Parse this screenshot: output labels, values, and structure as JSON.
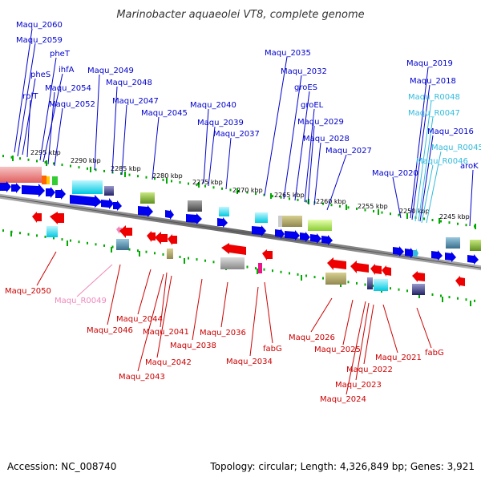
{
  "title": "Marinobacter aquaeolei VT8, complete genome",
  "footer": {
    "accession": "Accession: NC_008740",
    "summary": "Topology: circular; Length: 4,326,849 bp; Genes: 3,921"
  },
  "colors": {
    "fwd_label": "#0000cc",
    "rev_label": "#cc0000",
    "rna_fwd_label": "#33bbdd",
    "rna_rev_label": "#ee88bb",
    "fwd_gene": "#0000ee",
    "rev_gene": "#ee0000",
    "backbone": "#777777",
    "tick": "#00aa00"
  },
  "scale_labels": [
    "2295 kbp",
    "2290 kbp",
    "2285 kbp",
    "2280 kbp",
    "2275 kbp",
    "2270 kbp",
    "2265 kbp",
    "2260 kbp",
    "2255 kbp",
    "2250 kbp",
    "2245 kbp"
  ],
  "forward_labels": [
    {
      "text": "Maqu_2060"
    },
    {
      "text": "Maqu_2059"
    },
    {
      "text": "pheT"
    },
    {
      "text": "pheS"
    },
    {
      "text": "ihfA"
    },
    {
      "text": "Maqu_2054"
    },
    {
      "text": "rplT"
    },
    {
      "text": "Maqu_2052"
    },
    {
      "text": "Maqu_2049"
    },
    {
      "text": "Maqu_2048"
    },
    {
      "text": "Maqu_2047"
    },
    {
      "text": "Maqu_2045"
    },
    {
      "text": "Maqu_2040"
    },
    {
      "text": "Maqu_2039"
    },
    {
      "text": "Maqu_2037"
    },
    {
      "text": "Maqu_2035"
    },
    {
      "text": "Maqu_2032"
    },
    {
      "text": "groES"
    },
    {
      "text": "groEL"
    },
    {
      "text": "Maqu_2029"
    },
    {
      "text": "Maqu_2028"
    },
    {
      "text": "Maqu_2027"
    },
    {
      "text": "Maqu_2020"
    },
    {
      "text": "Maqu_2019"
    },
    {
      "text": "Maqu_2018"
    },
    {
      "text": "Maqu_R0048",
      "rna": true
    },
    {
      "text": "Maqu_R0047",
      "rna": true
    },
    {
      "text": "Maqu_2016"
    },
    {
      "text": "Maqu_R0045",
      "rna": true
    },
    {
      "text": "Maqu_R0046",
      "rna": true
    },
    {
      "text": "aroK"
    }
  ],
  "reverse_labels": [
    {
      "text": "Maqu_2050"
    },
    {
      "text": "Maqu_R0049",
      "rna": true
    },
    {
      "text": "Maqu_2044"
    },
    {
      "text": "Maqu_2046"
    },
    {
      "text": "Maqu_2041"
    },
    {
      "text": "Maqu_2036"
    },
    {
      "text": "Maqu_2038"
    },
    {
      "text": "Maqu_2042"
    },
    {
      "text": "Maqu_2043"
    },
    {
      "text": "fabG"
    },
    {
      "text": "Maqu_2034"
    },
    {
      "text": "Maqu_2026"
    },
    {
      "text": "Maqu_2025"
    },
    {
      "text": "Maqu_2021"
    },
    {
      "text": "fabG"
    },
    {
      "text": "Maqu_2022"
    },
    {
      "text": "Maqu_2023"
    },
    {
      "text": "Maqu_2024"
    }
  ]
}
